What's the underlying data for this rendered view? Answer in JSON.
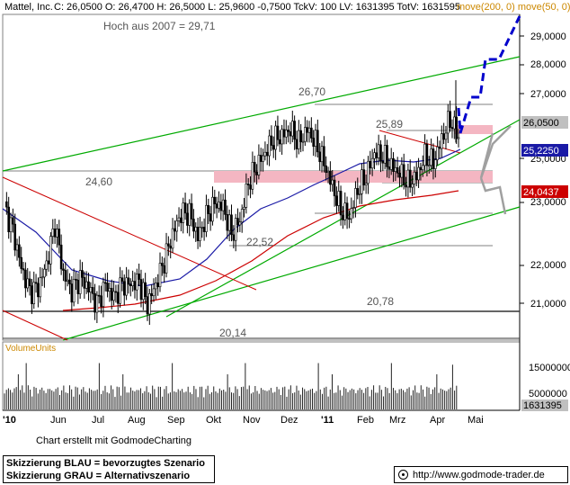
{
  "header": {
    "title": "Mattel, Inc.",
    "quote": "C: 26,0500 O: 26,4700 H: 26,5000 L: 25,9600 -0,7500 TckV: 100 LV: 1631395 TotV: 1631595",
    "ma_label": "move(200, 0)  move(50, 0)",
    "high_note": "Hoch aus 2007  =  29,71"
  },
  "colors": {
    "candles": "#000000",
    "ma200": "#cc0000",
    "ma50": "#1a1aa6",
    "trend_lines": "#00aa00",
    "resistance_line": "#cc0000",
    "zone_fill": "#f4b6c2",
    "scenario_blue": "#0000cc",
    "scenario_grey": "#a0a0a0",
    "price_tag_grey": "#c0c0c0",
    "price_tag_blue": "#1a1aa6",
    "price_tag_red": "#cc0000",
    "header_ma": "#cc8800"
  },
  "chart_data": {
    "type": "candlestick",
    "title": "Mattel, Inc.",
    "x_tick_labels": [
      "'10",
      "Jun",
      "Jul",
      "Aug",
      "Sep",
      "Okt",
      "Nov",
      "Dez",
      "'11",
      "Feb",
      "Mrz",
      "Apr",
      "Mai"
    ],
    "y_ticks": [
      21,
      22,
      23,
      24,
      25,
      26,
      27,
      28,
      29
    ],
    "y_tick_labels": [
      "21,0000",
      "22,0000",
      "23,0000",
      "24,0000",
      "25,0000",
      "26,0000",
      "27,0000",
      "28,0000",
      "29,0000"
    ],
    "ylim": [
      20.05,
      29.7
    ],
    "grid": false,
    "series": [
      {
        "name": "move(200, 0)",
        "note": "red moving average"
      },
      {
        "name": "move(50, 0)",
        "note": "blue moving average"
      }
    ],
    "approx_closes": [
      24.0,
      23.3,
      22.2,
      21.5,
      21.6,
      22.3,
      23.5,
      22.0,
      21.5,
      21.9,
      21.6,
      21.1,
      21.7,
      21.3,
      21.7,
      21.7,
      21.8,
      21.1,
      21.7,
      22.4,
      23.2,
      23.8,
      23.8,
      23.1,
      23.7,
      24.1,
      24.0,
      23.2,
      23.6,
      24.7,
      25.2,
      25.6,
      26.0,
      26.1,
      26.3,
      25.9,
      26.3,
      25.9,
      25.3,
      24.6,
      23.9,
      23.7,
      24.5,
      24.9,
      25.6,
      25.5,
      25.2,
      25.0,
      24.7,
      24.9,
      25.5,
      25.3,
      26.0,
      26.6,
      26.05
    ],
    "annotations": [
      {
        "text": "26,70",
        "value": 26.7
      },
      {
        "text": "25,89",
        "value": 25.89
      },
      {
        "text": "24,60",
        "value": 24.6
      },
      {
        "text": "22,52",
        "value": 22.52
      },
      {
        "text": "20,78",
        "value": 20.78
      },
      {
        "text": "20,14",
        "value": 20.14
      }
    ],
    "zones": [
      {
        "from": 25.75,
        "to": 26.0
      },
      {
        "from": 24.25,
        "to": 24.6
      }
    ],
    "last_values": [
      {
        "label": "26,0500",
        "value": 26.05
      },
      {
        "label": "25,2250",
        "value": 25.225
      },
      {
        "label": "24,0437",
        "value": 24.0437
      }
    ],
    "volume": {
      "label": "VolumeUnits",
      "y_tick_labels": [
        "15000000",
        "5000000"
      ],
      "y_ticks": [
        15000000,
        5000000
      ],
      "last_label": "1631395",
      "last_value": 1631395
    }
  },
  "footer": {
    "credit": "Chart erstellt mit GodmodeCharting",
    "note_line1": "Skizzierung BLAU = bevorzugtes Szenario",
    "note_line2": "Skizzierung GRAU = Alternativszenario",
    "url": "http://www.godmode-trader.de"
  }
}
